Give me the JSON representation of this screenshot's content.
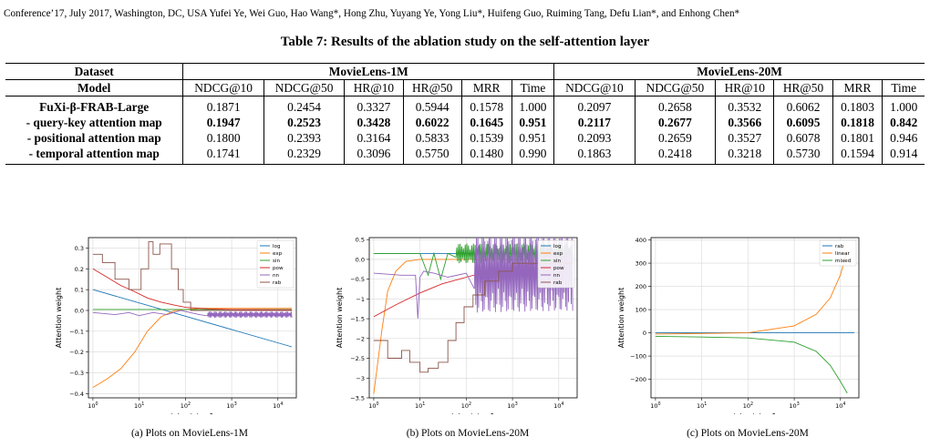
{
  "header": "Conference’17, July 2017, Washington, DC, USA   Yufei Ye, Wei Guo, Hao Wang*, Hong Zhu, Yuyang Ye, Yong Liu*, Huifeng Guo, Ruiming Tang, Defu Lian*, and Enhong Chen*",
  "table": {
    "caption": "Table 7: Results of the ablation study on the self-attention layer",
    "col_dataset": "Dataset",
    "col_model": "Model",
    "dataset1": "MovieLens-1M",
    "dataset2": "MovieLens-20M",
    "metrics": [
      "NDCG@10",
      "NDCG@50",
      "HR@10",
      "HR@50",
      "MRR",
      "Time"
    ],
    "rows": [
      {
        "model": "FuXi-β-FRAB-Large",
        "bold_cells": false,
        "values": [
          "0.1871",
          "0.2454",
          "0.3327",
          "0.5944",
          "0.1578",
          "1.000",
          "0.2097",
          "0.2658",
          "0.3532",
          "0.6062",
          "0.1803",
          "1.000"
        ]
      },
      {
        "model": "- query-key attention map",
        "bold_cells": true,
        "values": [
          "0.1947",
          "0.2523",
          "0.3428",
          "0.6022",
          "0.1645",
          "0.951",
          "0.2117",
          "0.2677",
          "0.3566",
          "0.6095",
          "0.1818",
          "0.842"
        ]
      },
      {
        "model": "- positional attention map",
        "bold_cells": false,
        "values": [
          "0.1800",
          "0.2393",
          "0.3164",
          "0.5833",
          "0.1539",
          "0.951",
          "0.2093",
          "0.2659",
          "0.3527",
          "0.6078",
          "0.1801",
          "0.946"
        ]
      },
      {
        "model": "- temporal attention map",
        "bold_cells": false,
        "values": [
          "0.1741",
          "0.2329",
          "0.3096",
          "0.5750",
          "0.1480",
          "0.990",
          "0.1863",
          "0.2418",
          "0.3218",
          "0.5730",
          "0.1594",
          "0.914"
        ]
      }
    ]
  },
  "chart_data": [
    {
      "type": "line",
      "caption": "(a) Plots on MovieLens-1M",
      "xlabel": "t_i − t_j − 1",
      "ylabel": "Attention weight",
      "xscale": "log",
      "xlim": [
        0.8,
        25000
      ],
      "ylim": [
        -0.42,
        0.35
      ],
      "yticks": [
        -0.4,
        -0.3,
        -0.2,
        -0.1,
        0.0,
        0.1,
        0.2,
        0.3
      ],
      "xtick_labels": [
        "10^0",
        "10^1",
        "10^2",
        "10^3",
        "10^4"
      ],
      "grid": true,
      "legend_position": "top-right",
      "series": [
        {
          "name": "log",
          "color": "#1f77b4",
          "x": [
            1,
            20000
          ],
          "y": [
            0.1,
            -0.175
          ]
        },
        {
          "name": "exp",
          "color": "#ff7f0e",
          "x": [
            1,
            2,
            4,
            8,
            15,
            30,
            60,
            100,
            200,
            20000
          ],
          "y": [
            -0.37,
            -0.33,
            -0.28,
            -0.2,
            -0.1,
            -0.03,
            0.0,
            0.005,
            0.01,
            0.01
          ]
        },
        {
          "name": "sin",
          "color": "#2ca02c",
          "x": [
            1,
            20000
          ],
          "y": [
            0.005,
            0.005
          ]
        },
        {
          "name": "pow",
          "color": "#d62728",
          "x": [
            1,
            2,
            4,
            8,
            15,
            30,
            60,
            100,
            300,
            1000,
            20000
          ],
          "y": [
            0.2,
            0.16,
            0.12,
            0.09,
            0.06,
            0.04,
            0.025,
            0.015,
            0.008,
            0.005,
            0.003
          ]
        },
        {
          "name": "nn",
          "color": "#9467bd",
          "x": [
            1,
            3,
            6,
            10,
            20,
            40,
            80,
            200,
            20000
          ],
          "y": [
            -0.01,
            -0.02,
            -0.01,
            -0.025,
            -0.01,
            -0.02,
            0.0,
            -0.02,
            -0.02
          ],
          "oscillation": {
            "from": 300,
            "to": 20000,
            "amplitude": 0.015
          }
        },
        {
          "name": "rab",
          "color": "#8c564b",
          "x": [
            1,
            1.6,
            1.6,
            3,
            3,
            6,
            6,
            11,
            11,
            16,
            16,
            20,
            20,
            28,
            28,
            50,
            50,
            70,
            70,
            90,
            90,
            130,
            130,
            20000
          ],
          "y": [
            0.27,
            0.27,
            0.23,
            0.23,
            0.15,
            0.15,
            0.1,
            0.1,
            0.2,
            0.2,
            0.33,
            0.33,
            0.27,
            0.27,
            0.32,
            0.32,
            0.2,
            0.2,
            0.1,
            0.1,
            0.04,
            0.04,
            0.0,
            0.0
          ]
        }
      ]
    },
    {
      "type": "line",
      "caption": "(b) Plots on MovieLens-20M",
      "xlabel": "t_i − t_j − 1",
      "ylabel": "Attention weight",
      "xscale": "log",
      "xlim": [
        0.8,
        25000
      ],
      "ylim": [
        -3.5,
        0.55
      ],
      "yticks": [
        -3.5,
        -3.0,
        -2.5,
        -2.0,
        -1.5,
        -1.0,
        -0.5,
        0.0,
        0.5
      ],
      "xtick_labels": [
        "10^0",
        "10^1",
        "10^2",
        "10^3",
        "10^4"
      ],
      "grid": true,
      "legend_position": "top-right",
      "series": [
        {
          "name": "log",
          "color": "#1f77b4",
          "x": [
            1,
            20000
          ],
          "y": [
            0.15,
            0.15
          ]
        },
        {
          "name": "exp",
          "color": "#ff7f0e",
          "x": [
            1,
            1.5,
            2,
            3,
            5,
            10,
            20000
          ],
          "y": [
            -3.4,
            -1.8,
            -0.8,
            -0.3,
            -0.05,
            0.0,
            0.0
          ]
        },
        {
          "name": "sin",
          "color": "#2ca02c",
          "x": [
            1,
            10,
            15,
            20,
            28,
            40,
            20000
          ],
          "y": [
            0.15,
            0.15,
            -0.4,
            0.15,
            -0.5,
            0.15,
            0.15
          ],
          "oscillation": {
            "from": 60,
            "to": 20000,
            "amplitude": 0.25
          }
        },
        {
          "name": "pow",
          "color": "#d62728",
          "x": [
            1,
            3,
            10,
            30,
            100,
            300,
            1000,
            3000,
            20000
          ],
          "y": [
            -1.45,
            -1.15,
            -0.85,
            -0.62,
            -0.45,
            -0.3,
            -0.2,
            -0.12,
            -0.08
          ]
        },
        {
          "name": "nn",
          "color": "#9467bd",
          "x": [
            1,
            4,
            8,
            9,
            10,
            12,
            20,
            40,
            100,
            20000
          ],
          "y": [
            -0.35,
            -0.4,
            -0.4,
            -1.5,
            -0.45,
            -0.3,
            -0.35,
            -0.45,
            -0.35,
            -0.3
          ],
          "oscillation": {
            "from": 150,
            "to": 20000,
            "amplitude": 1.0
          }
        },
        {
          "name": "rab",
          "color": "#8c564b",
          "x": [
            1,
            2,
            2,
            4,
            4,
            6,
            6,
            10,
            10,
            15,
            15,
            25,
            25,
            40,
            40,
            60,
            60,
            90,
            90,
            140,
            140,
            250,
            250,
            500,
            500,
            1000,
            1000,
            20000
          ],
          "y": [
            -2.05,
            -2.05,
            -2.5,
            -2.5,
            -2.3,
            -2.3,
            -2.6,
            -2.6,
            -2.85,
            -2.85,
            -2.75,
            -2.75,
            -2.6,
            -2.6,
            -2.05,
            -2.05,
            -1.6,
            -1.6,
            -1.2,
            -1.2,
            -0.9,
            -0.9,
            -0.55,
            -0.55,
            -0.3,
            -0.3,
            -0.1,
            -0.1
          ]
        }
      ]
    },
    {
      "type": "line",
      "caption": "(c) Plots on MovieLens-20M",
      "xlabel": "t_i − t_j − 1",
      "ylabel": "Attention weight",
      "xscale": "log",
      "xlim": [
        0.8,
        25000
      ],
      "ylim": [
        -280,
        410
      ],
      "yticks": [
        -200,
        -100,
        0,
        100,
        200,
        300,
        400
      ],
      "xtick_labels": [
        "10^0",
        "10^1",
        "10^2",
        "10^3",
        "10^4"
      ],
      "grid": true,
      "legend_position": "top-right",
      "series": [
        {
          "name": "rab",
          "color": "#1f77b4",
          "x": [
            1,
            20000
          ],
          "y": [
            0,
            0
          ]
        },
        {
          "name": "linear",
          "color": "#ff7f0e",
          "x": [
            1,
            10,
            100,
            1000,
            3000,
            6000,
            10000,
            14000
          ],
          "y": [
            -5,
            -3,
            0,
            30,
            80,
            150,
            250,
            355
          ]
        },
        {
          "name": "mixed",
          "color": "#2ca02c",
          "x": [
            1,
            10,
            100,
            1000,
            3000,
            6000,
            10000,
            14000
          ],
          "y": [
            -15,
            -18,
            -22,
            -40,
            -80,
            -140,
            -210,
            -260
          ]
        }
      ]
    }
  ]
}
